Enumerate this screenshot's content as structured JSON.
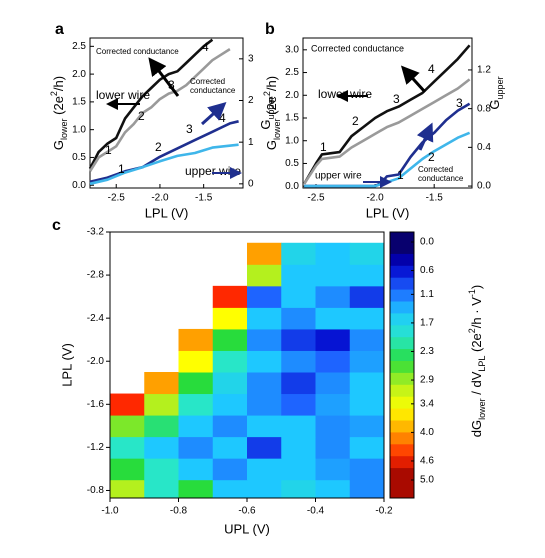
{
  "chart_data": [
    {
      "type": "line",
      "label": "a",
      "xlabel": "LPL (V)",
      "ylabel": [
        {
          "text": "G"
        },
        {
          "text": "lower",
          "sub": true
        },
        {
          "text": " (2e"
        },
        {
          "text": "2",
          "sup": true
        },
        {
          "text": "/h)"
        }
      ],
      "y2label": [
        {
          "text": "G"
        },
        {
          "text": "upper",
          "sub": true
        }
      ],
      "xlim": [
        -2.8,
        -1.05
      ],
      "xticks": [
        -2.5,
        {
          "value": -2,
          "label": "-2.0"
        },
        -1.5
      ],
      "ylim": [
        -0.05,
        2.65
      ],
      "yticks": [
        {
          "value": 0,
          "label": "0.0"
        },
        0.5,
        {
          "value": 1,
          "label": "1.0"
        },
        1.5,
        {
          "value": 2,
          "label": "2.0"
        },
        2.5
      ],
      "y2lim": [
        -0.1,
        3.5
      ],
      "y2ticks": [
        0,
        1,
        2,
        3
      ],
      "series": [
        {
          "color": "#111111",
          "x": [
            -2.8,
            -2.7,
            -2.6,
            -2.5,
            -2.4,
            -2.3,
            -2.2,
            -2.1,
            -2.0,
            -1.9,
            -1.8,
            -1.7,
            -1.6,
            -1.5,
            -1.4
          ],
          "values": [
            0.3,
            0.6,
            0.75,
            0.85,
            1.2,
            1.4,
            1.6,
            1.75,
            1.9,
            2.0,
            2.05,
            2.2,
            2.35,
            2.5,
            2.62
          ]
        },
        {
          "color": "#9a9a9a",
          "x": [
            -2.8,
            -2.7,
            -2.6,
            -2.5,
            -2.4,
            -2.3,
            -2.2,
            -2.1,
            -2.0,
            -1.9,
            -1.8,
            -1.7,
            -1.6,
            -1.5,
            -1.4,
            -1.3,
            -1.2
          ],
          "values": [
            0.25,
            0.5,
            0.6,
            0.7,
            0.95,
            1.1,
            1.3,
            1.4,
            1.55,
            1.65,
            1.7,
            1.8,
            1.95,
            2.1,
            2.25,
            2.35,
            2.45
          ]
        },
        {
          "color": "#1f2f8f",
          "axis": "y2",
          "x": [
            -2.8,
            -2.6,
            -2.4,
            -2.2,
            -2.0,
            -1.8,
            -1.6,
            -1.4,
            -1.2,
            -1.1
          ],
          "values": [
            0.05,
            0.15,
            0.3,
            0.4,
            0.65,
            0.85,
            1.05,
            1.25,
            1.45,
            1.5
          ]
        },
        {
          "color": "#3fb6ea",
          "axis": "y2",
          "x": [
            -2.8,
            -2.6,
            -2.4,
            -2.2,
            -2.0,
            -1.8,
            -1.6,
            -1.4,
            -1.1
          ],
          "values": [
            0,
            0.1,
            0.27,
            0.4,
            0.54,
            0.67,
            0.74,
            0.87,
            0.94
          ]
        }
      ],
      "annotations": [
        {
          "text": "Corrected conductance",
          "color": "#000000"
        },
        {
          "text": "lower wire",
          "color": "#000000"
        },
        {
          "text": "upper wire",
          "color": "#1f2f8f"
        },
        {
          "lines": [
            "Corrected",
            "conductance"
          ],
          "color": "#1f2f8f"
        },
        {
          "text": "1",
          "color": "#000000"
        },
        {
          "text": "2",
          "color": "#000000"
        },
        {
          "text": "3",
          "color": "#000000"
        },
        {
          "text": "4",
          "color": "#000000"
        },
        {
          "text": "1",
          "color": "#1f2f8f"
        },
        {
          "text": "2",
          "color": "#1f2f8f"
        },
        {
          "text": "3",
          "color": "#1f2f8f"
        },
        {
          "text": "4",
          "color": "#1f2f8f"
        }
      ]
    },
    {
      "type": "line",
      "label": "b",
      "xlabel": "LPL (V)",
      "ylabel": [
        {
          "text": "G"
        },
        {
          "text": "lower",
          "sub": true
        },
        {
          "text": " (2e"
        },
        {
          "text": "2",
          "sup": true
        },
        {
          "text": "/h)"
        }
      ],
      "y2label": [
        {
          "text": "G"
        },
        {
          "text": "upper",
          "sub": true
        }
      ],
      "xlim": [
        -2.61,
        -1.18
      ],
      "xticks": [
        -2.5,
        {
          "value": -2,
          "label": "-2.0"
        },
        -1.5
      ],
      "ylim": [
        -0.04,
        3.26
      ],
      "yticks": [
        {
          "value": 0,
          "label": "0.0"
        },
        0.5,
        {
          "value": 1,
          "label": "1.0"
        },
        1.5,
        {
          "value": 2,
          "label": "2.0"
        },
        2.5,
        {
          "value": 3,
          "label": "3.0"
        }
      ],
      "y2lim": [
        -0.02,
        1.53
      ],
      "y2ticks": [
        {
          "value": 0,
          "label": "0.0"
        },
        0.4,
        0.8,
        1.2
      ],
      "series": [
        {
          "color": "#111111",
          "x": [
            -2.6,
            -2.5,
            -2.45,
            -2.3,
            -2.2,
            -2.1,
            -2.0,
            -1.9,
            -1.8,
            -1.7,
            -1.6,
            -1.5,
            -1.4,
            -1.3,
            -1.2
          ],
          "values": [
            0.05,
            0.5,
            0.7,
            0.75,
            1.1,
            1.3,
            1.5,
            1.65,
            1.75,
            1.9,
            2.05,
            2.3,
            2.55,
            2.8,
            3.1
          ]
        },
        {
          "color": "#9a9a9a",
          "x": [
            -2.6,
            -2.5,
            -2.45,
            -2.3,
            -2.2,
            -2.1,
            -2.0,
            -1.9,
            -1.8,
            -1.7,
            -1.6,
            -1.5,
            -1.4,
            -1.3,
            -1.2
          ],
          "values": [
            0.05,
            0.45,
            0.6,
            0.65,
            0.85,
            1.0,
            1.15,
            1.3,
            1.4,
            1.55,
            1.7,
            1.85,
            2.0,
            2.15,
            2.35
          ]
        },
        {
          "color": "#1f2f8f",
          "axis": "y2",
          "x": [
            -2.6,
            -2.0,
            -1.95,
            -1.9,
            -1.8,
            -1.7,
            -1.6,
            -1.5,
            -1.4,
            -1.3,
            -1.2
          ],
          "values": [
            0,
            0,
            0.03,
            0.1,
            0.12,
            0.3,
            0.45,
            0.55,
            0.68,
            0.78,
            0.85
          ]
        },
        {
          "color": "#3fb6ea",
          "axis": "y2",
          "x": [
            -2.6,
            -2.0,
            -1.9,
            -1.8,
            -1.7,
            -1.6,
            -1.5,
            -1.4,
            -1.3,
            -1.2
          ],
          "values": [
            0,
            0,
            0.04,
            0.08,
            0.18,
            0.28,
            0.36,
            0.43,
            0.5,
            0.55
          ]
        }
      ],
      "annotations": [
        {
          "text": "Corrected conductance",
          "color": "#000000"
        },
        {
          "text": "lower wire",
          "color": "#000000"
        },
        {
          "text": "upper wire",
          "color": "#1f2f8f"
        },
        {
          "lines": [
            "Corrected",
            "conductance"
          ],
          "color": "#1f2f8f"
        },
        {
          "text": "1",
          "color": "#000000"
        },
        {
          "text": "2",
          "color": "#000000"
        },
        {
          "text": "3",
          "color": "#000000"
        },
        {
          "text": "4",
          "color": "#000000"
        },
        {
          "text": "1",
          "color": "#1f2f8f"
        },
        {
          "text": "2",
          "color": "#1f2f8f"
        },
        {
          "text": "3",
          "color": "#1f2f8f"
        }
      ]
    },
    {
      "type": "heatmap",
      "label": "c",
      "xlabel": "UPL (V)",
      "ylabel": "LPL (V)",
      "xlim": [
        -1.0,
        -0.2
      ],
      "xticks": [
        {
          "value": -1,
          "label": "-1.0"
        },
        -0.8,
        -0.6,
        -0.4,
        -0.2
      ],
      "ylim": [
        -0.73,
        -3.2
      ],
      "yticks": [
        -0.8,
        -1.2,
        -1.6,
        {
          "value": -2,
          "label": "-2.0"
        },
        -2.4,
        -2.8,
        -3.2
      ],
      "x": [
        -0.95,
        -0.85,
        -0.75,
        -0.65,
        -0.55,
        -0.45,
        -0.35,
        -0.25
      ],
      "y": [
        -0.8,
        -1.0,
        -1.2,
        -1.4,
        -1.6,
        -1.8,
        -2.0,
        -2.2,
        -2.4,
        -2.6,
        -2.8,
        -3.0
      ],
      "z": [
        [
          3,
          2,
          2.5,
          1.5,
          1.5,
          1.7,
          1.5,
          1.2
        ],
        [
          2.5,
          2,
          1.5,
          1.2,
          1.5,
          1.5,
          1.3,
          1.2
        ],
        [
          2,
          1.5,
          1.2,
          1.5,
          0.8,
          1.5,
          1.2,
          1.5
        ],
        [
          2.8,
          2.3,
          1.5,
          1.2,
          1.5,
          1.5,
          1.2,
          1.3
        ],
        [
          4.5,
          3,
          2,
          1.5,
          1.2,
          1,
          1.3,
          1.5
        ],
        [
          null,
          4,
          2.5,
          1.7,
          1.2,
          0.8,
          1.2,
          1.5
        ],
        [
          null,
          null,
          3.5,
          2,
          1.5,
          1.2,
          1,
          1.3
        ],
        [
          null,
          null,
          4,
          2.5,
          1.2,
          0.8,
          0.6,
          1.2
        ],
        [
          null,
          null,
          null,
          3.5,
          1.5,
          1.2,
          1.5,
          1.5
        ],
        [
          null,
          null,
          null,
          4.5,
          1,
          1.5,
          1.2,
          0.8
        ],
        [
          null,
          null,
          null,
          null,
          3,
          1.5,
          1.5,
          1.5
        ],
        [
          null,
          null,
          null,
          null,
          4,
          1.7,
          1.5,
          1.7
        ]
      ],
      "clim": [
        0,
        5
      ],
      "cticks": [
        {
          "value": 0,
          "label": "0.0"
        },
        0.6,
        1.1,
        1.7,
        2.3,
        2.9,
        3.4,
        {
          "value": 4,
          "label": "4.0"
        },
        4.6,
        {
          "value": 5,
          "label": "5.0"
        }
      ],
      "colormap": [
        "#0a0050",
        "#0000c8",
        "#1e64ff",
        "#1ec8ff",
        "#28e6c8",
        "#28dc3c",
        "#b4f01e",
        "#ffff00",
        "#ffa000",
        "#ff2800",
        "#8c0000"
      ],
      "colorbar_label": [
        {
          "text": "dG"
        },
        {
          "text": "lower",
          "sub": true
        },
        {
          "text": " / dV"
        },
        {
          "text": "LPL",
          "sub": true
        },
        {
          "text": "  (2e"
        },
        {
          "text": "2",
          "sup": true
        },
        {
          "text": "/h · V"
        },
        {
          "text": "-1",
          "sup": true
        },
        {
          "text": ")"
        }
      ]
    }
  ]
}
